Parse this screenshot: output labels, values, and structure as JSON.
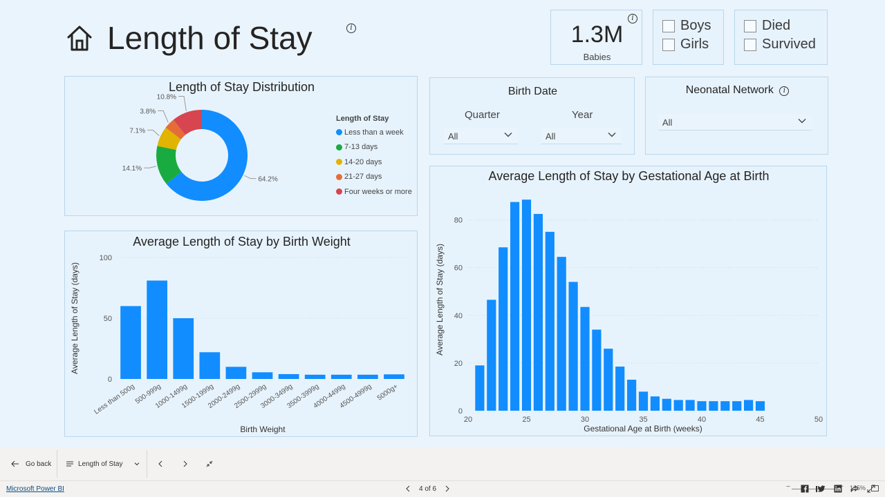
{
  "header": {
    "title": "Length of Stay",
    "info_icon": "info-icon",
    "home_icon": "home-icon"
  },
  "kpi": {
    "value": "1.3M",
    "label": "Babies"
  },
  "filters": {
    "gender": [
      "Boys",
      "Girls"
    ],
    "outcome": [
      "Died",
      "Survived"
    ],
    "birth_date": {
      "title": "Birth Date",
      "quarter_label": "Quarter",
      "quarter_value": "All",
      "year_label": "Year",
      "year_value": "All"
    },
    "network": {
      "title": "Neonatal Network",
      "value": "All"
    }
  },
  "colors": {
    "blue": "#118dff",
    "green": "#1aab40",
    "yellow": "#e0b400",
    "orange": "#e66c37",
    "red": "#d64550"
  },
  "chart_data": [
    {
      "type": "pie",
      "title": "Length of Stay Distribution",
      "legend_title": "Length of Stay",
      "legend_position": "right",
      "categories": [
        "Less than a week",
        "7-13 days",
        "14-20 days",
        "21-27 days",
        "Four weeks or more"
      ],
      "values": [
        64.2,
        14.1,
        7.1,
        3.8,
        10.8
      ],
      "data_labels": [
        "64.2%",
        "14.1%",
        "7.1%",
        "3.8%",
        "10.8%"
      ],
      "colors": [
        "#118dff",
        "#1aab40",
        "#e0b400",
        "#e66c37",
        "#d64550"
      ]
    },
    {
      "type": "bar",
      "title": "Average Length of Stay by Birth Weight",
      "xlabel": "Birth Weight",
      "ylabel": "Average Length of Stay (days)",
      "ylim": [
        0,
        100
      ],
      "yticks": [
        0,
        50,
        100
      ],
      "grid": true,
      "categories": [
        "Less than 500g",
        "500-999g",
        "1000-1499g",
        "1500-1999g",
        "2000-2499g",
        "2500-2999g",
        "3000-3499g",
        "3500-3999g",
        "4000-4499g",
        "4500-4999g",
        "5000g+"
      ],
      "values": [
        60,
        81,
        50,
        22,
        10,
        5.5,
        4,
        3.5,
        3.5,
        3.5,
        3.8
      ]
    },
    {
      "type": "bar",
      "title": "Average Length of Stay by Gestational Age at Birth",
      "xlabel": "Gestational Age at Birth (weeks)",
      "ylabel": "Average Length of Stay (days)",
      "ylim": [
        0,
        90
      ],
      "yticks": [
        0,
        20,
        40,
        60,
        80
      ],
      "xlim": [
        20,
        50
      ],
      "xticks": [
        20,
        25,
        30,
        35,
        40,
        45,
        50
      ],
      "grid": true,
      "x": [
        21,
        22,
        23,
        24,
        25,
        26,
        27,
        28,
        29,
        30,
        31,
        32,
        33,
        34,
        35,
        36,
        37,
        38,
        39,
        40,
        41,
        42,
        43,
        44,
        45
      ],
      "values": [
        19,
        46.5,
        68.5,
        87.5,
        88.5,
        82.5,
        75,
        64.5,
        54,
        43.5,
        34,
        26,
        18.5,
        13,
        8,
        6,
        5,
        4.5,
        4.5,
        4,
        4,
        4,
        4,
        4.5,
        4
      ]
    }
  ],
  "footer": {
    "go_back": "Go back",
    "page_menu": "Length of Stay",
    "page_indicator": "4 of 6",
    "zoom": "135%",
    "brand": "Microsoft Power BI"
  }
}
